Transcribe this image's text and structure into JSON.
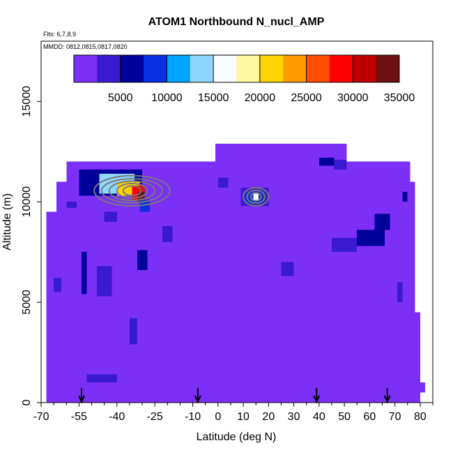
{
  "chart_data": {
    "type": "heatmap",
    "title": "ATOM1 Northbound N_nucl_AMP",
    "subtitle_flights": "Flts: 6,7,8,9",
    "subtitle_dates": "MMDD: 0812,0815,0817,0820",
    "xlabel": "Latitude (deg N)",
    "ylabel": "Altitude (m)",
    "xlim": [
      -70,
      85
    ],
    "ylim": [
      0,
      18000
    ],
    "x_ticks": [
      -70,
      -55,
      -40,
      -25,
      -10,
      0,
      10,
      20,
      30,
      40,
      50,
      60,
      70,
      80
    ],
    "x_tick_labels": [
      "-70",
      "-55",
      "-40",
      "-25",
      "-10",
      "0",
      "10",
      "20",
      "30",
      "40",
      "50",
      "60",
      "70",
      "80"
    ],
    "x_minor_ticks": [
      -65,
      -60,
      -50,
      -45,
      -35,
      -30,
      -20,
      -15,
      -5,
      5,
      15,
      25,
      35,
      45,
      55,
      65,
      75,
      85
    ],
    "y_ticks": [
      0,
      5000,
      10000,
      15000
    ],
    "y_tick_labels": [
      "0",
      "5000",
      "10000",
      "15000"
    ],
    "colorbar": {
      "min": 0,
      "max": 35000,
      "ticks": [
        5000,
        10000,
        15000,
        20000,
        25000,
        30000,
        35000
      ],
      "tick_labels": [
        "5000",
        "10000",
        "15000",
        "20000",
        "25000",
        "30000",
        "35000"
      ],
      "colors": [
        "#7b2ff7",
        "#3a1ad0",
        "#00009a",
        "#0a2fe0",
        "#00a6ff",
        "#8fd6ff",
        "#f8fbff",
        "#fff7a0",
        "#ffd400",
        "#ff9a00",
        "#ff4e00",
        "#ff0000",
        "#c00000",
        "#6e1010"
      ]
    },
    "background_value": 1500,
    "coverage": [
      {
        "lat_min": -68,
        "lat_max": 80,
        "alt_min": 0,
        "alt_max": 4500
      },
      {
        "lat_min": -68,
        "lat_max": 78,
        "alt_min": 4500,
        "alt_max": 9500
      },
      {
        "lat_min": -64,
        "lat_max": 78,
        "alt_min": 9500,
        "alt_max": 11000
      },
      {
        "lat_min": -60,
        "lat_max": 76,
        "alt_min": 11000,
        "alt_max": 12000
      },
      {
        "lat_min": -1,
        "lat_max": 51,
        "alt_min": 12000,
        "alt_max": 12900
      },
      {
        "lat_min": 80,
        "lat_max": 82,
        "alt_min": 500,
        "alt_max": 1000
      }
    ],
    "cells": [
      {
        "lat_min": -55,
        "lat_max": -30,
        "alt_min": 10300,
        "alt_max": 11600,
        "value": 6000
      },
      {
        "lat_min": -47,
        "lat_max": -33,
        "alt_min": 10400,
        "alt_max": 11400,
        "value": 14000
      },
      {
        "lat_min": -40,
        "lat_max": -31,
        "alt_min": 10300,
        "alt_max": 11000,
        "value": 21000
      },
      {
        "lat_min": -34,
        "lat_max": -29,
        "alt_min": 10100,
        "alt_max": 10800,
        "value": 28000
      },
      {
        "lat_min": -32,
        "lat_max": -29,
        "alt_min": 10000,
        "alt_max": 10500,
        "value": 34000
      },
      {
        "lat_min": -31,
        "lat_max": -27,
        "alt_min": 9500,
        "alt_max": 10100,
        "value": 9000
      },
      {
        "lat_min": -32,
        "lat_max": -28,
        "alt_min": 6600,
        "alt_max": 7600,
        "value": 5500
      },
      {
        "lat_min": -48,
        "lat_max": -42,
        "alt_min": 5300,
        "alt_max": 6800,
        "value": 4000
      },
      {
        "lat_min": -54,
        "lat_max": -52,
        "alt_min": 5400,
        "alt_max": 7500,
        "value": 5000
      },
      {
        "lat_min": -65,
        "lat_max": -62,
        "alt_min": 5500,
        "alt_max": 6200,
        "value": 4000
      },
      {
        "lat_min": -35,
        "lat_max": -32,
        "alt_min": 2900,
        "alt_max": 4200,
        "value": 4000
      },
      {
        "lat_min": -52,
        "lat_max": -40,
        "alt_min": 1000,
        "alt_max": 1400,
        "value": 3500
      },
      {
        "lat_min": -60,
        "lat_max": -56,
        "alt_min": 9700,
        "alt_max": 10000,
        "value": 4500
      },
      {
        "lat_min": 9,
        "lat_max": 20,
        "alt_min": 9800,
        "alt_max": 10700,
        "value": 4000
      },
      {
        "lat_min": 11,
        "lat_max": 18,
        "alt_min": 9900,
        "alt_max": 10500,
        "value": 8000
      },
      {
        "lat_min": 14,
        "lat_max": 16,
        "alt_min": 10100,
        "alt_max": 10400,
        "value": 16000
      },
      {
        "lat_min": 55,
        "lat_max": 66,
        "alt_min": 7800,
        "alt_max": 8600,
        "value": 5000
      },
      {
        "lat_min": 62,
        "lat_max": 68,
        "alt_min": 8600,
        "alt_max": 9400,
        "value": 5500
      },
      {
        "lat_min": 45,
        "lat_max": 55,
        "alt_min": 7500,
        "alt_max": 8200,
        "value": 3500
      },
      {
        "lat_min": 40,
        "lat_max": 46,
        "alt_min": 11800,
        "alt_max": 12200,
        "value": 5000
      },
      {
        "lat_min": 46,
        "lat_max": 51,
        "alt_min": 11600,
        "alt_max": 12100,
        "value": 3500
      },
      {
        "lat_min": 73,
        "lat_max": 75,
        "alt_min": 10000,
        "alt_max": 10500,
        "value": 5500
      },
      {
        "lat_min": 71,
        "lat_max": 73,
        "alt_min": 5000,
        "alt_max": 6000,
        "value": 4500
      },
      {
        "lat_min": -45,
        "lat_max": -40,
        "alt_min": 9000,
        "alt_max": 9500,
        "value": 3000
      },
      {
        "lat_min": 0,
        "lat_max": 4,
        "alt_min": 10700,
        "alt_max": 11200,
        "value": 3500
      },
      {
        "lat_min": 25,
        "lat_max": 30,
        "alt_min": 6300,
        "alt_max": 7000,
        "value": 3200
      },
      {
        "lat_min": -22,
        "lat_max": -18,
        "alt_min": 8000,
        "alt_max": 8800,
        "value": 3000
      }
    ],
    "contour_groups": [
      {
        "name": "contours-southern-plume",
        "center_lat": -34,
        "center_alt": 10550,
        "rings": [
          {
            "lat_radius": 15,
            "alt_radius": 750
          },
          {
            "lat_radius": 12,
            "alt_radius": 600
          },
          {
            "lat_radius": 9,
            "alt_radius": 480
          },
          {
            "lat_radius": 6,
            "alt_radius": 360
          },
          {
            "lat_radius": 3.5,
            "alt_radius": 240
          }
        ]
      },
      {
        "name": "contours-tropical-plume",
        "center_lat": 15,
        "center_alt": 10250,
        "rings": [
          {
            "lat_radius": 5,
            "alt_radius": 450
          },
          {
            "lat_radius": 3.5,
            "alt_radius": 320
          },
          {
            "lat_radius": 2,
            "alt_radius": 200
          }
        ]
      }
    ],
    "flight_markers_lat": [
      -54,
      -8,
      39,
      67
    ]
  }
}
